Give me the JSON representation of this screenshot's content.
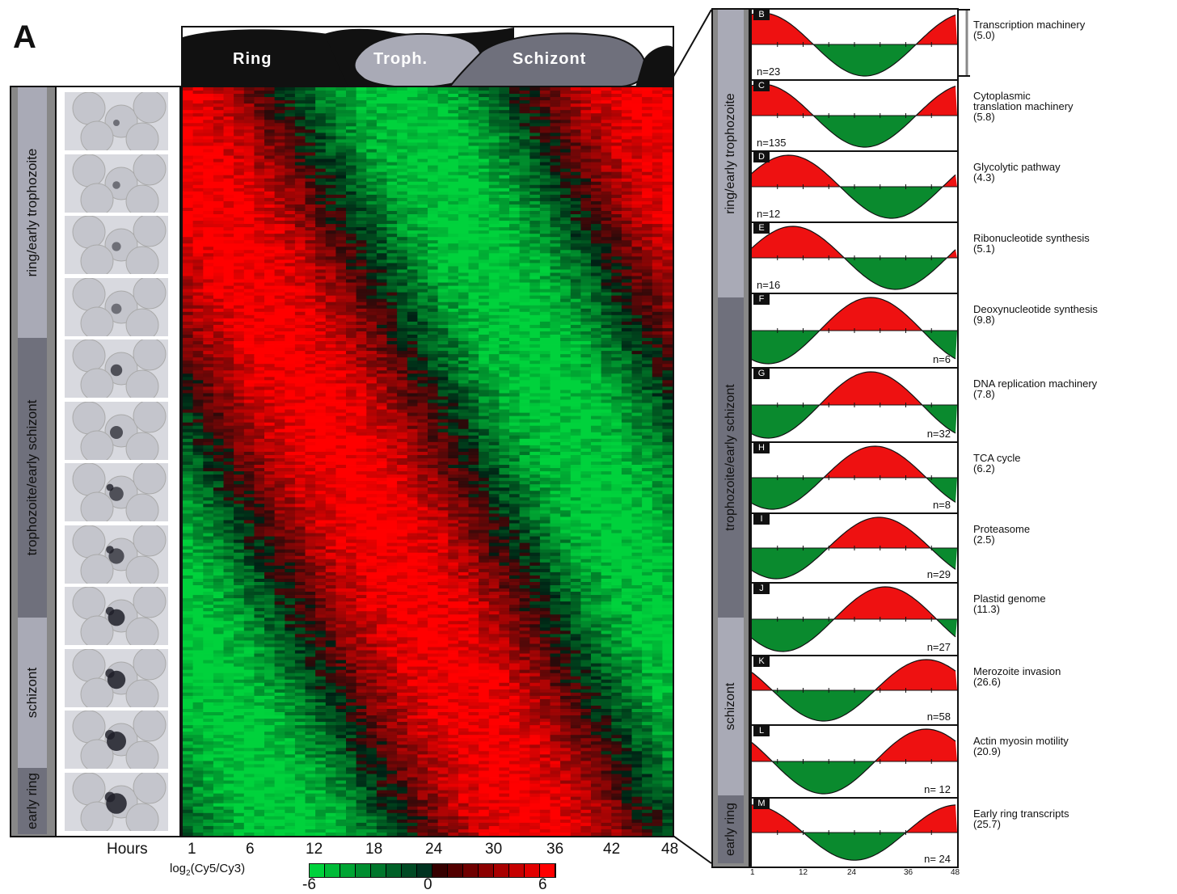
{
  "figure": {
    "panel_letter": "A",
    "stages_header": [
      "Ring",
      "Troph.",
      "Schizont"
    ],
    "left_stage_labels": [
      "ring/early trophozoite",
      "trophozoite/early schizont",
      "schizont",
      "early ring"
    ],
    "hours_label": "Hours",
    "hour_ticks": [
      "1",
      "6",
      "12",
      "18",
      "24",
      "30",
      "36",
      "42",
      "48"
    ],
    "legend": {
      "label_prefix": "log",
      "label_sub": "2",
      "label_suffix": "(Cy5/Cy3)",
      "ticks": [
        "-6",
        "0",
        "6"
      ],
      "colors": [
        "#00c040",
        "#000000",
        "#ff1a1a"
      ]
    }
  },
  "right_panels": {
    "stage_labels": [
      "ring/early trophozoite",
      "trophozoite/early schizont",
      "schizont",
      "early ring"
    ],
    "bottom_axis": [
      "1",
      "12",
      "24",
      "36",
      "48"
    ],
    "items": [
      {
        "letter": "B",
        "n": "n=23",
        "label": "Transcription machinery",
        "value": "(5.0)"
      },
      {
        "letter": "C",
        "n": "n=135",
        "label": "Cytoplasmic\ntranslation machinery",
        "value": "(5.8)"
      },
      {
        "letter": "D",
        "n": "n=12",
        "label": "Glycolytic pathway",
        "value": "(4.3)"
      },
      {
        "letter": "E",
        "n": "n=16",
        "label": "Ribonucleotide synthesis",
        "value": "(5.1)"
      },
      {
        "letter": "F",
        "n": "n=6",
        "label": "Deoxynucleotide synthesis",
        "value": "(9.8)"
      },
      {
        "letter": "G",
        "n": "n=32",
        "label": "DNA replication machinery",
        "value": "(7.8)"
      },
      {
        "letter": "H",
        "n": "n=8",
        "label": "TCA cycle",
        "value": "(6.2)"
      },
      {
        "letter": "I",
        "n": "n=29",
        "label": "Proteasome",
        "value": "(2.5)"
      },
      {
        "letter": "J",
        "n": "n=27",
        "label": "Plastid genome",
        "value": "(11.3)"
      },
      {
        "letter": "K",
        "n": "n=58",
        "label": "Merozoite invasion",
        "value": "(26.6)"
      },
      {
        "letter": "L",
        "n": "n= 12",
        "label": "Actin myosin motility",
        "value": "(20.9)"
      },
      {
        "letter": "M",
        "n": "n= 24",
        "label": "Early ring transcripts",
        "value": "(25.7)"
      }
    ]
  },
  "colors": {
    "red": "#ee1111",
    "green": "#0a8a2e",
    "stage_gray": "#a9aab6",
    "stage_dark": "#6f707c"
  }
}
